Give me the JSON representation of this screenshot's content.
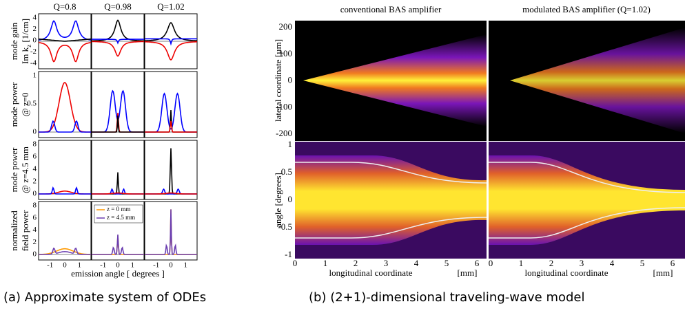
{
  "figure_a": {
    "columns": [
      "Q=0.8",
      "Q=0.98",
      "Q=1.02"
    ],
    "rows": [
      {
        "label_lines": [
          "mode gain",
          "Im k",
          "z",
          " [1/cm]"
        ],
        "yticks": [
          "4",
          "2",
          "0",
          "-2",
          "-4"
        ]
      },
      {
        "label_lines": [
          "mode power",
          "@ z=0"
        ],
        "yticks": [
          "1",
          "0.5",
          "0"
        ]
      },
      {
        "label_lines": [
          "mode power",
          "@ z=4.5 mm"
        ],
        "yticks": [
          "8",
          "6",
          "4",
          "2",
          "0"
        ]
      },
      {
        "label_lines": [
          "normalized",
          "field power"
        ],
        "yticks": [
          "8",
          "6",
          "4",
          "2",
          "0"
        ]
      }
    ],
    "xticks": [
      "-1",
      "0",
      "1"
    ],
    "xlabel": "emission angle    [ degrees ]",
    "legend": [
      "z =    0 mm",
      "z = 4.5 mm"
    ],
    "caption": "(a) Approximate system of ODEs"
  },
  "figure_b": {
    "titles": [
      "conventional BAS amplifier",
      "modulated BAS amplifier (Q=1.02)"
    ],
    "ylabels": [
      "lateral coordinate [µm]",
      "angle  [degrees]"
    ],
    "yticks_top": [
      "200",
      "100",
      "0",
      "-100",
      "-200"
    ],
    "yticks_bottom": [
      "1",
      "0.5",
      "0",
      "-0.5",
      "-1"
    ],
    "xticks": [
      "0",
      "1",
      "2",
      "3",
      "4",
      "5",
      "6"
    ],
    "xlabel": "longitudinal coordinate",
    "xunit": "[mm]",
    "caption": "(b) (2+1)-dimensional traveling-wave model"
  }
}
